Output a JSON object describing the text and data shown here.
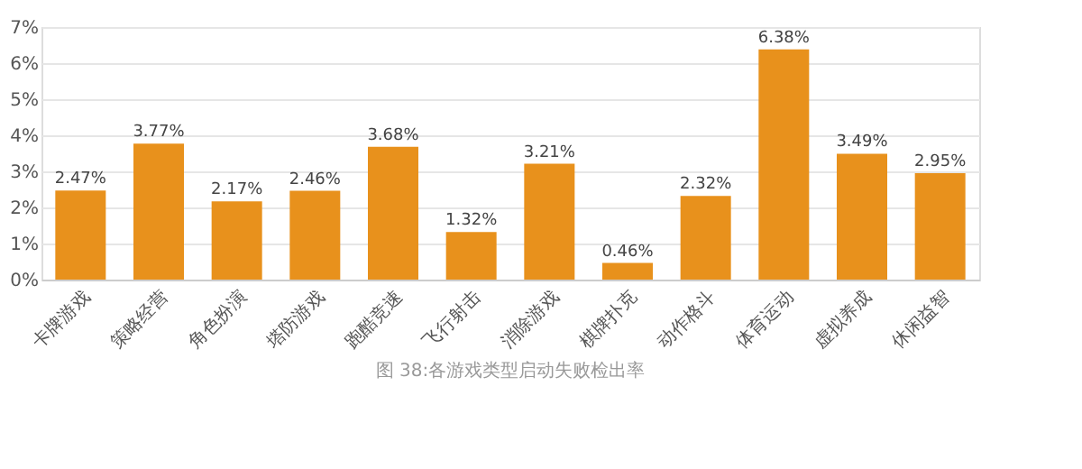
{
  "chart_data": {
    "type": "bar",
    "categories": [
      "卡牌游戏",
      "策略经营",
      "角色扮演",
      "塔防游戏",
      "跑酷竞速",
      "飞行射击",
      "消除游戏",
      "棋牌扑克",
      "动作格斗",
      "体育运动",
      "虚拟养成",
      "休闲益智"
    ],
    "values": [
      2.47,
      3.77,
      2.17,
      2.46,
      3.68,
      1.32,
      3.21,
      0.46,
      2.32,
      6.38,
      3.49,
      2.95
    ],
    "value_labels": [
      "2.47%",
      "3.77%",
      "2.17%",
      "2.46%",
      "3.68%",
      "1.32%",
      "3.21%",
      "0.46%",
      "2.32%",
      "6.38%",
      "3.49%",
      "2.95%"
    ],
    "color": "#e8911c",
    "ylim": [
      0,
      7
    ],
    "yticks": [
      {
        "value": 0,
        "label": "0%"
      },
      {
        "value": 1,
        "label": "1%"
      },
      {
        "value": 2,
        "label": "2%"
      },
      {
        "value": 3,
        "label": "3%"
      },
      {
        "value": 4,
        "label": "4%"
      },
      {
        "value": 5,
        "label": "5%"
      },
      {
        "value": 6,
        "label": "6%"
      },
      {
        "value": 7,
        "label": "7%"
      }
    ],
    "grid": "y",
    "annotations": [
      "图 38:各游戏类型启动失败检出率"
    ]
  }
}
